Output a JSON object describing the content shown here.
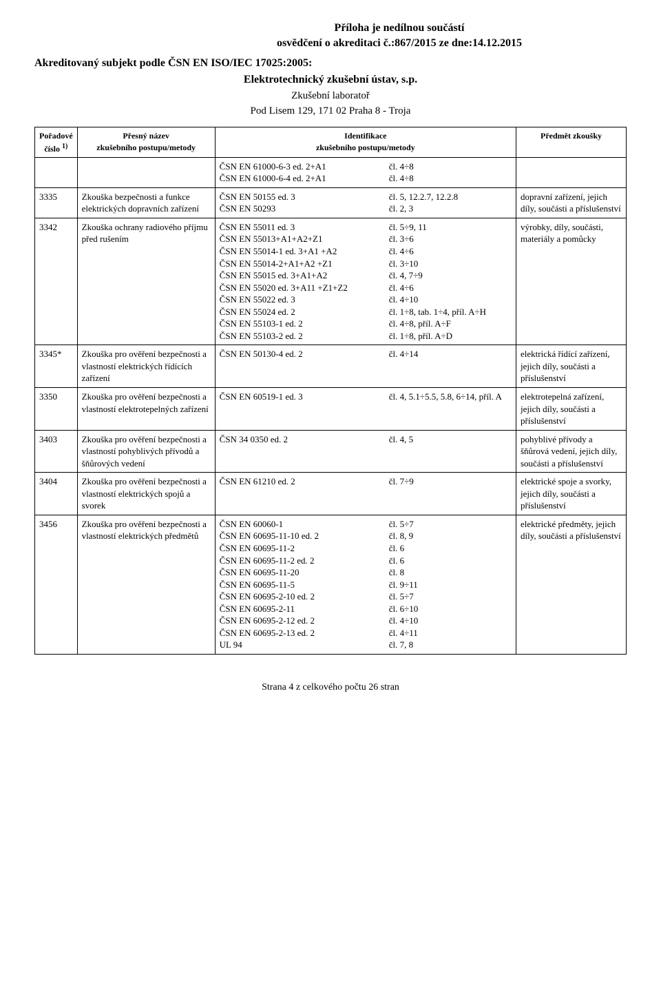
{
  "header": {
    "line1": "Příloha je nedílnou součástí",
    "line2": "osvědčení o akreditaci č.:867/2015 ze dne:14.12.2015",
    "accredited": "Akreditovaný subjekt podle ČSN EN ISO/IEC 17025:2005:",
    "org": "Elektrotechnický zkušební ústav, s.p.",
    "lab": "Zkušební laboratoř",
    "addr": "Pod Lisem 129, 171 02  Praha 8 - Troja"
  },
  "columns": {
    "c1a": "Pořadové",
    "c1b": "číslo",
    "c1sup": "1)",
    "c2a": "Přesný název",
    "c2b": "zkušebního postupu/metody",
    "c3a": "Identifikace",
    "c3b": "zkušebního postupu/metody",
    "c4": "Předmět zkoušky"
  },
  "rows": [
    {
      "num": "",
      "name": "",
      "ident": [
        {
          "l": "ČSN EN 61000-6-3 ed. 2+A1",
          "r": "čl. 4÷8"
        },
        {
          "l": "ČSN EN 61000-6-4 ed. 2+A1",
          "r": "čl. 4÷8"
        }
      ],
      "subj": ""
    },
    {
      "num": "3335",
      "name": "Zkouška bezpečnosti a funkce elektrických dopravních zařízení",
      "ident": [
        {
          "l": "ČSN EN 50155 ed. 3",
          "r": "čl. 5, 12.2.7, 12.2.8"
        },
        {
          "l": "ČSN EN 50293",
          "r": "čl. 2, 3"
        }
      ],
      "subj": "dopravní zařízení, jejich díly, součásti a příslušenství"
    },
    {
      "num": "3342",
      "name": "Zkouška ochrany radiového příjmu před rušením",
      "ident": [
        {
          "l": "ČSN EN 55011 ed. 3",
          "r": "čl. 5÷9, 11"
        },
        {
          "l": "ČSN EN 55013+A1+A2+Z1",
          "r": "čl. 3÷6"
        },
        {
          "l": "ČSN EN 55014-1 ed. 3+A1 +A2",
          "r": "čl. 4÷6"
        },
        {
          "l": "ČSN EN 55014-2+A1+A2 +Z1",
          "r": "čl. 3÷10"
        },
        {
          "l": "ČSN EN 55015 ed. 3+A1+A2",
          "r": "čl. 4, 7÷9"
        },
        {
          "l": "ČSN EN 55020 ed. 3+A11 +Z1+Z2",
          "r": "čl. 4÷6"
        },
        {
          "l": "ČSN EN 55022 ed. 3",
          "r": "čl. 4÷10"
        },
        {
          "l": "ČSN EN 55024 ed. 2",
          "r": "čl. 1÷8, tab. 1÷4, příl. A÷H"
        },
        {
          "l": "ČSN EN 55103-1 ed. 2",
          "r": "čl. 4÷8, příl. A÷F"
        },
        {
          "l": "ČSN EN 55103-2 ed. 2",
          "r": "čl. 1÷8, příl. A÷D"
        }
      ],
      "subj": "výrobky, díly, součásti, materiály a pomůcky"
    },
    {
      "num": "3345*",
      "name": "Zkouška pro ověření bezpečnosti a vlastností elektrických řídících zařízení",
      "ident": [
        {
          "l": "ČSN EN 50130-4 ed. 2",
          "r": "čl. 4÷14"
        }
      ],
      "subj": "elektrická řídící zařízení, jejich díly, součásti a příslušenství"
    },
    {
      "num": "3350",
      "name": "Zkouška pro ověření bezpečnosti a vlastností elektrotepelných zařízení",
      "ident": [
        {
          "l": "ČSN EN 60519-1 ed. 3",
          "r": "čl. 4, 5.1÷5.5, 5.8, 6÷14, příl. A"
        }
      ],
      "subj": "elektrotepelná zařízení, jejich díly, součásti a příslušenství"
    },
    {
      "num": "3403",
      "name": "Zkouška pro ověření bezpečnosti a vlastností pohyblivých přívodů a šňůrových vedení",
      "ident": [
        {
          "l": "ČSN 34 0350 ed. 2",
          "r": "čl. 4, 5"
        }
      ],
      "subj": "pohyblivé přívody a šňůrová vedení, jejich díly, součásti a příslušenství"
    },
    {
      "num": "3404",
      "name": "Zkouška pro ověření bezpečnosti a vlastností elektrických spojů a svorek",
      "ident": [
        {
          "l": "ČSN EN 61210 ed. 2",
          "r": "čl. 7÷9"
        }
      ],
      "subj": "elektrické spoje a svorky, jejich díly, součásti a příslušenství"
    },
    {
      "num": "3456",
      "name": "Zkouška pro ověření bezpečnosti a vlastností elektrických předmětů",
      "ident": [
        {
          "l": "ČSN EN 60060-1",
          "r": "čl. 5÷7"
        },
        {
          "l": "ČSN EN 60695-11-10 ed. 2",
          "r": "čl. 8, 9"
        },
        {
          "l": "ČSN EN 60695-11-2",
          "r": "čl. 6"
        },
        {
          "l": "ČSN EN 60695-11-2 ed. 2",
          "r": "čl. 6"
        },
        {
          "l": "ČSN EN 60695-11-20",
          "r": "čl. 8"
        },
        {
          "l": "ČSN EN 60695-11-5",
          "r": "čl. 9÷11"
        },
        {
          "l": "ČSN EN 60695-2-10 ed. 2",
          "r": "čl. 5÷7"
        },
        {
          "l": "ČSN EN 60695-2-11",
          "r": "čl. 6÷10"
        },
        {
          "l": "ČSN EN 60695-2-12 ed. 2",
          "r": "čl. 4÷10"
        },
        {
          "l": "ČSN EN 60695-2-13 ed. 2",
          "r": "čl. 4÷11"
        },
        {
          "l": "UL 94",
          "r": "čl. 7, 8"
        }
      ],
      "subj": "elektrické předměty, jejich díly, součásti a příslušenství"
    }
  ],
  "footer": "Strana 4 z celkového počtu 26 stran"
}
